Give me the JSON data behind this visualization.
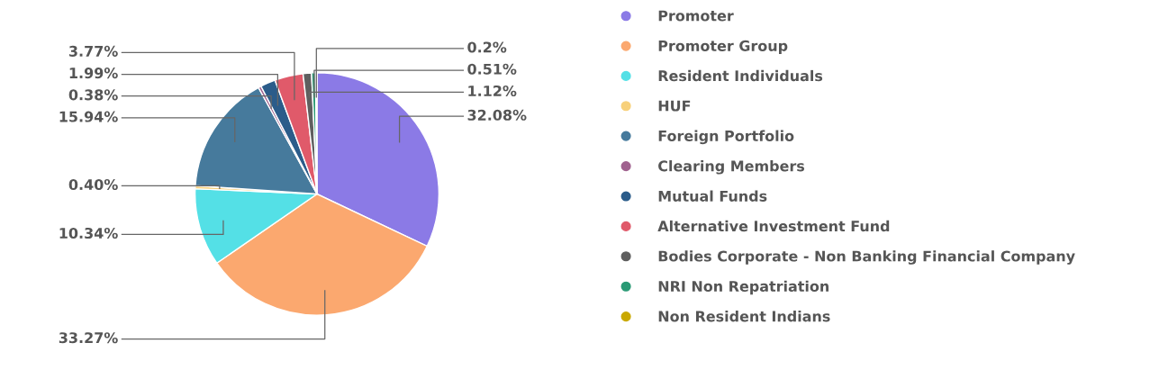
{
  "chart_data": {
    "type": "pie",
    "categories": [
      "Promoter",
      "Promoter Group",
      "Resident Individuals",
      "HUF",
      "Foreign Portfolio",
      "Clearing Members",
      "Mutual Funds",
      "Alternative Investment Fund",
      "Bodies Corporate - Non Banking Financial Company",
      "NRI Non Repatriation",
      "Non Resident Indians"
    ],
    "values": [
      32.08,
      33.27,
      10.34,
      0.4,
      15.94,
      0.38,
      1.99,
      3.77,
      1.12,
      0.51,
      0.2
    ],
    "colors": [
      "#8b7ae6",
      "#fba86f",
      "#54e0e6",
      "#f7d07a",
      "#467a9c",
      "#a0628f",
      "#2b5c8a",
      "#e05a6a",
      "#5f5f5f",
      "#2a9a75",
      "#c9a800"
    ],
    "value_labels": [
      "32.08%",
      "33.27%",
      "10.34%",
      "0.40%",
      "15.94%",
      "0.38%",
      "1.99%",
      "3.77%",
      "1.12%",
      "0.51%",
      "0.2%"
    ],
    "legend": "right"
  }
}
